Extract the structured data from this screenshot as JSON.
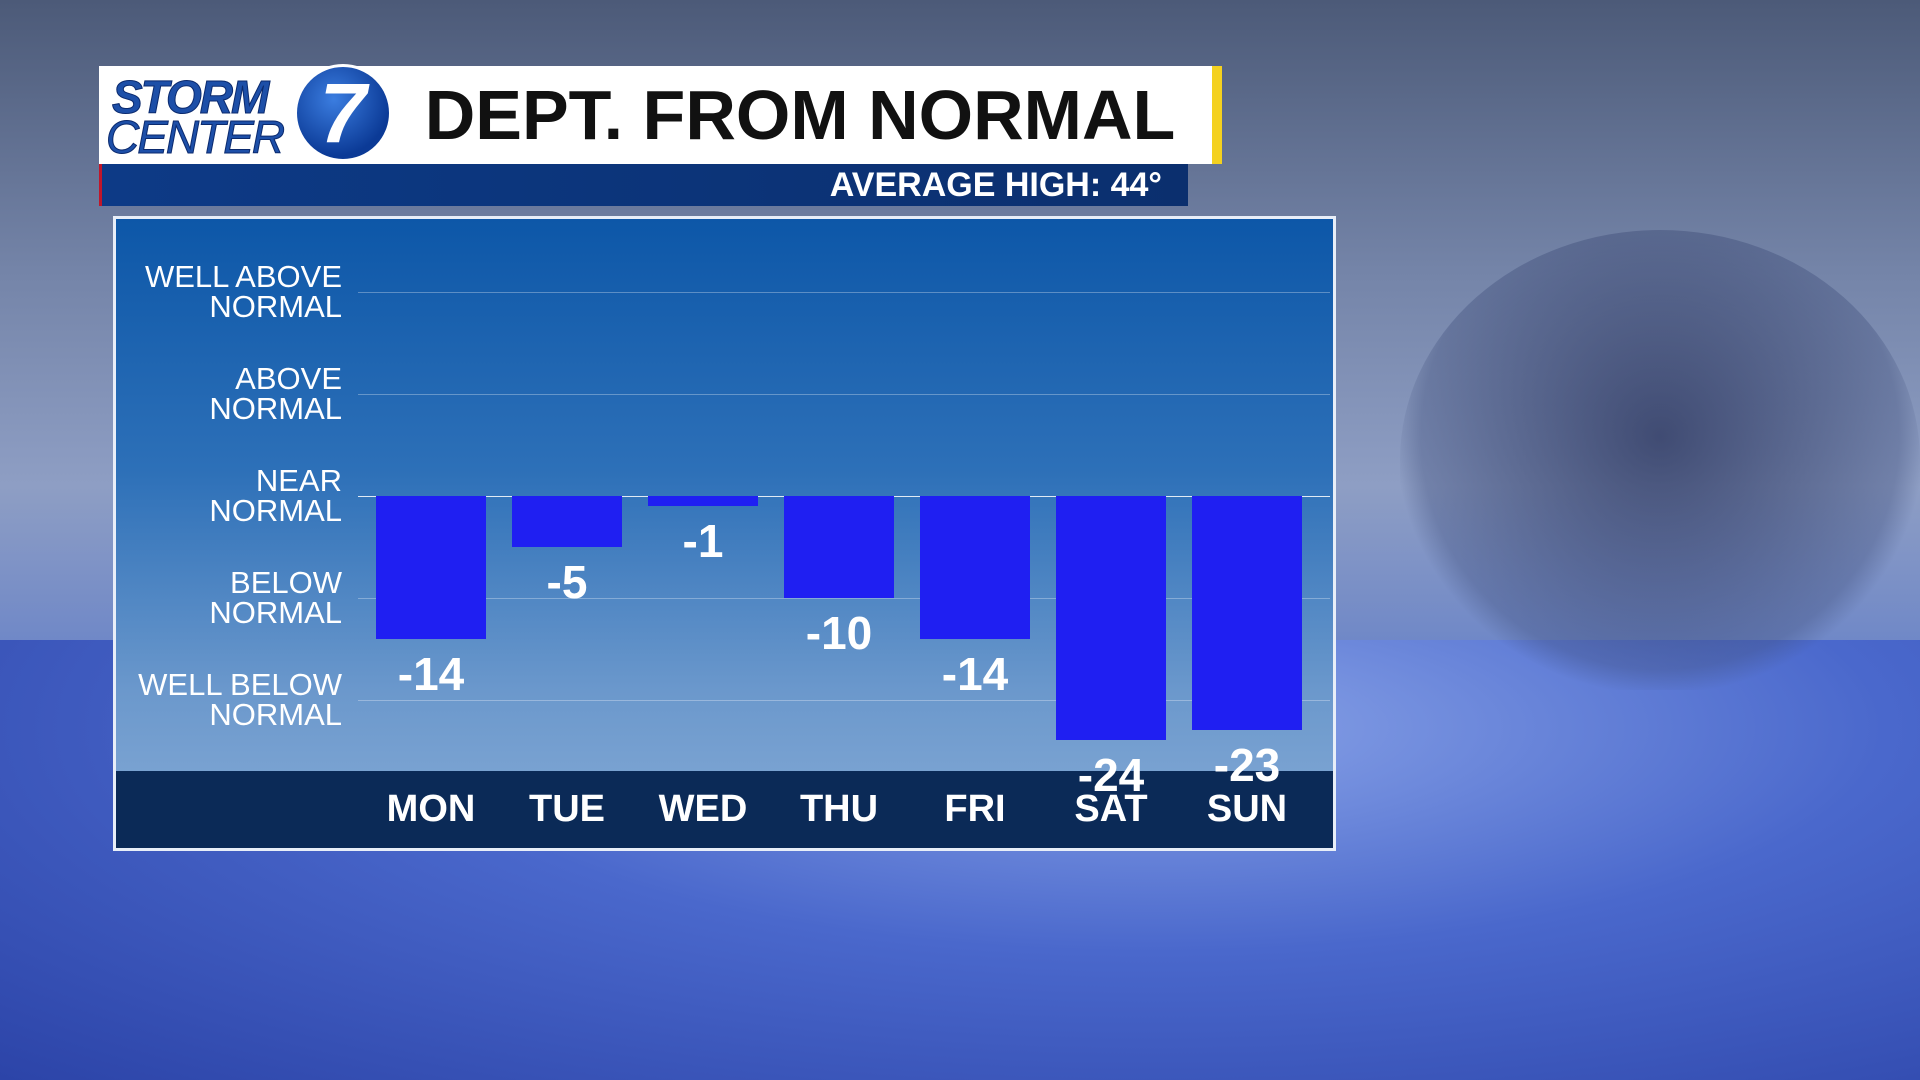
{
  "logo": {
    "line1": "STORM",
    "line2": "CENTER",
    "number": "7"
  },
  "chart_data": {
    "type": "bar",
    "title": "DEPT. FROM NORMAL",
    "subtitle": "AVERAGE HIGH: 44°",
    "categories": [
      "MON",
      "TUE",
      "WED",
      "THU",
      "FRI",
      "SAT",
      "SUN"
    ],
    "values": [
      -14,
      -5,
      -1,
      -10,
      -14,
      -24,
      -23
    ],
    "color": "#1f1ff2",
    "ylim": [
      -27,
      27.5
    ],
    "yticks": [
      {
        "value": 20,
        "label": "WELL ABOVE\nNORMAL"
      },
      {
        "value": 10,
        "label": "ABOVE\nNORMAL"
      },
      {
        "value": 0,
        "label": "NEAR\nNORMAL"
      },
      {
        "value": -10,
        "label": "BELOW\nNORMAL"
      },
      {
        "value": -20,
        "label": "WELL BELOW\nNORMAL"
      }
    ],
    "grid": true
  }
}
